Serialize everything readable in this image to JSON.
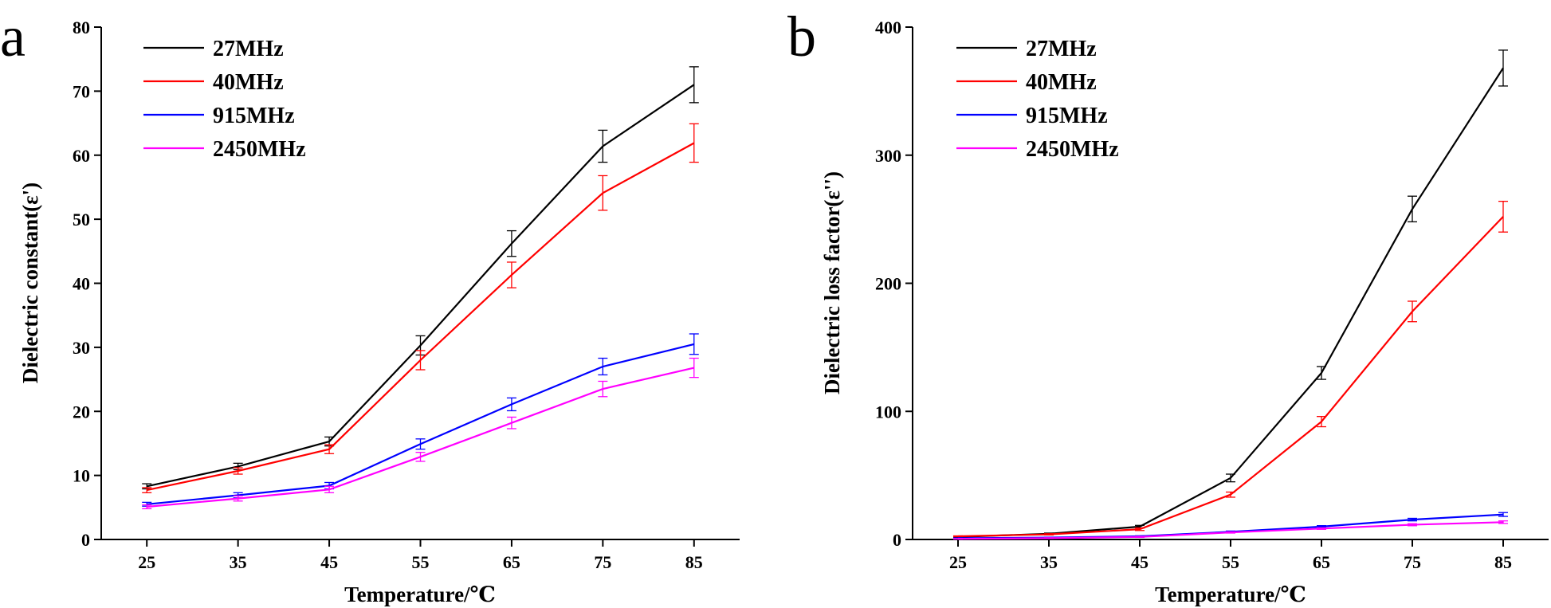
{
  "figure": {
    "panels": [
      "a",
      "b"
    ]
  },
  "chart_data": [
    {
      "type": "line",
      "panel_label": "a",
      "title": "",
      "xlabel": "Temperature/℃",
      "ylabel": "Dielectric constant(ε')",
      "xlim": [
        20,
        90
      ],
      "ylim": [
        0,
        80
      ],
      "x": [
        25,
        35,
        45,
        55,
        65,
        75,
        85
      ],
      "xticks": [
        25,
        35,
        45,
        55,
        65,
        75,
        85
      ],
      "yticks": [
        0,
        10,
        20,
        30,
        40,
        50,
        60,
        70,
        80
      ],
      "grid": false,
      "legend_position": "top-left",
      "series": [
        {
          "name": "27MHz",
          "color": "#000000",
          "values": [
            8.3,
            11.4,
            15.3,
            30.3,
            46.2,
            61.4,
            71.0
          ],
          "errors": [
            0.4,
            0.5,
            0.7,
            1.5,
            2.0,
            2.5,
            2.8
          ]
        },
        {
          "name": "40MHz",
          "color": "#ff0000",
          "values": [
            7.7,
            10.7,
            14.1,
            28.0,
            41.3,
            54.1,
            61.9
          ],
          "errors": [
            0.4,
            0.5,
            0.7,
            1.5,
            2.0,
            2.7,
            3.0
          ]
        },
        {
          "name": "915MHz",
          "color": "#0000ff",
          "values": [
            5.5,
            6.9,
            8.4,
            14.9,
            21.1,
            27.0,
            30.5
          ],
          "errors": [
            0.3,
            0.4,
            0.5,
            0.8,
            1.0,
            1.3,
            1.6
          ]
        },
        {
          "name": "2450MHz",
          "color": "#ff00ff",
          "values": [
            5.1,
            6.4,
            7.8,
            12.9,
            18.2,
            23.5,
            26.8
          ],
          "errors": [
            0.3,
            0.4,
            0.5,
            0.7,
            0.9,
            1.2,
            1.5
          ]
        }
      ]
    },
    {
      "type": "line",
      "panel_label": "b",
      "title": "",
      "xlabel": "Temperature/℃",
      "ylabel": "Dielectric loss factor(ε'')",
      "xlim": [
        20,
        90
      ],
      "ylim": [
        0,
        400
      ],
      "x": [
        25,
        35,
        45,
        55,
        65,
        75,
        85
      ],
      "xticks": [
        25,
        35,
        45,
        55,
        65,
        75,
        85
      ],
      "yticks": [
        0,
        100,
        200,
        300,
        400
      ],
      "grid": false,
      "legend_position": "top-left",
      "series": [
        {
          "name": "27MHz",
          "color": "#000000",
          "values": [
            2,
            4.5,
            10,
            48,
            130,
            258,
            368
          ],
          "errors": [
            0.3,
            0.5,
            1,
            3,
            5,
            10,
            14
          ]
        },
        {
          "name": "40MHz",
          "color": "#ff0000",
          "values": [
            2.5,
            4,
            8,
            35,
            92,
            178,
            252
          ],
          "errors": [
            0.3,
            0.5,
            1,
            2,
            4,
            8,
            12
          ]
        },
        {
          "name": "915MHz",
          "color": "#0000ff",
          "values": [
            1,
            1.5,
            2.5,
            6,
            10,
            15.5,
            19.5
          ],
          "errors": [
            0.2,
            0.3,
            0.4,
            0.6,
            0.8,
            1,
            1.5
          ]
        },
        {
          "name": "2450MHz",
          "color": "#ff00ff",
          "values": [
            0.5,
            1,
            2,
            5.5,
            8.5,
            11.5,
            13.5
          ],
          "errors": [
            0.2,
            0.3,
            0.4,
            0.5,
            0.6,
            0.8,
            1
          ]
        }
      ]
    }
  ]
}
